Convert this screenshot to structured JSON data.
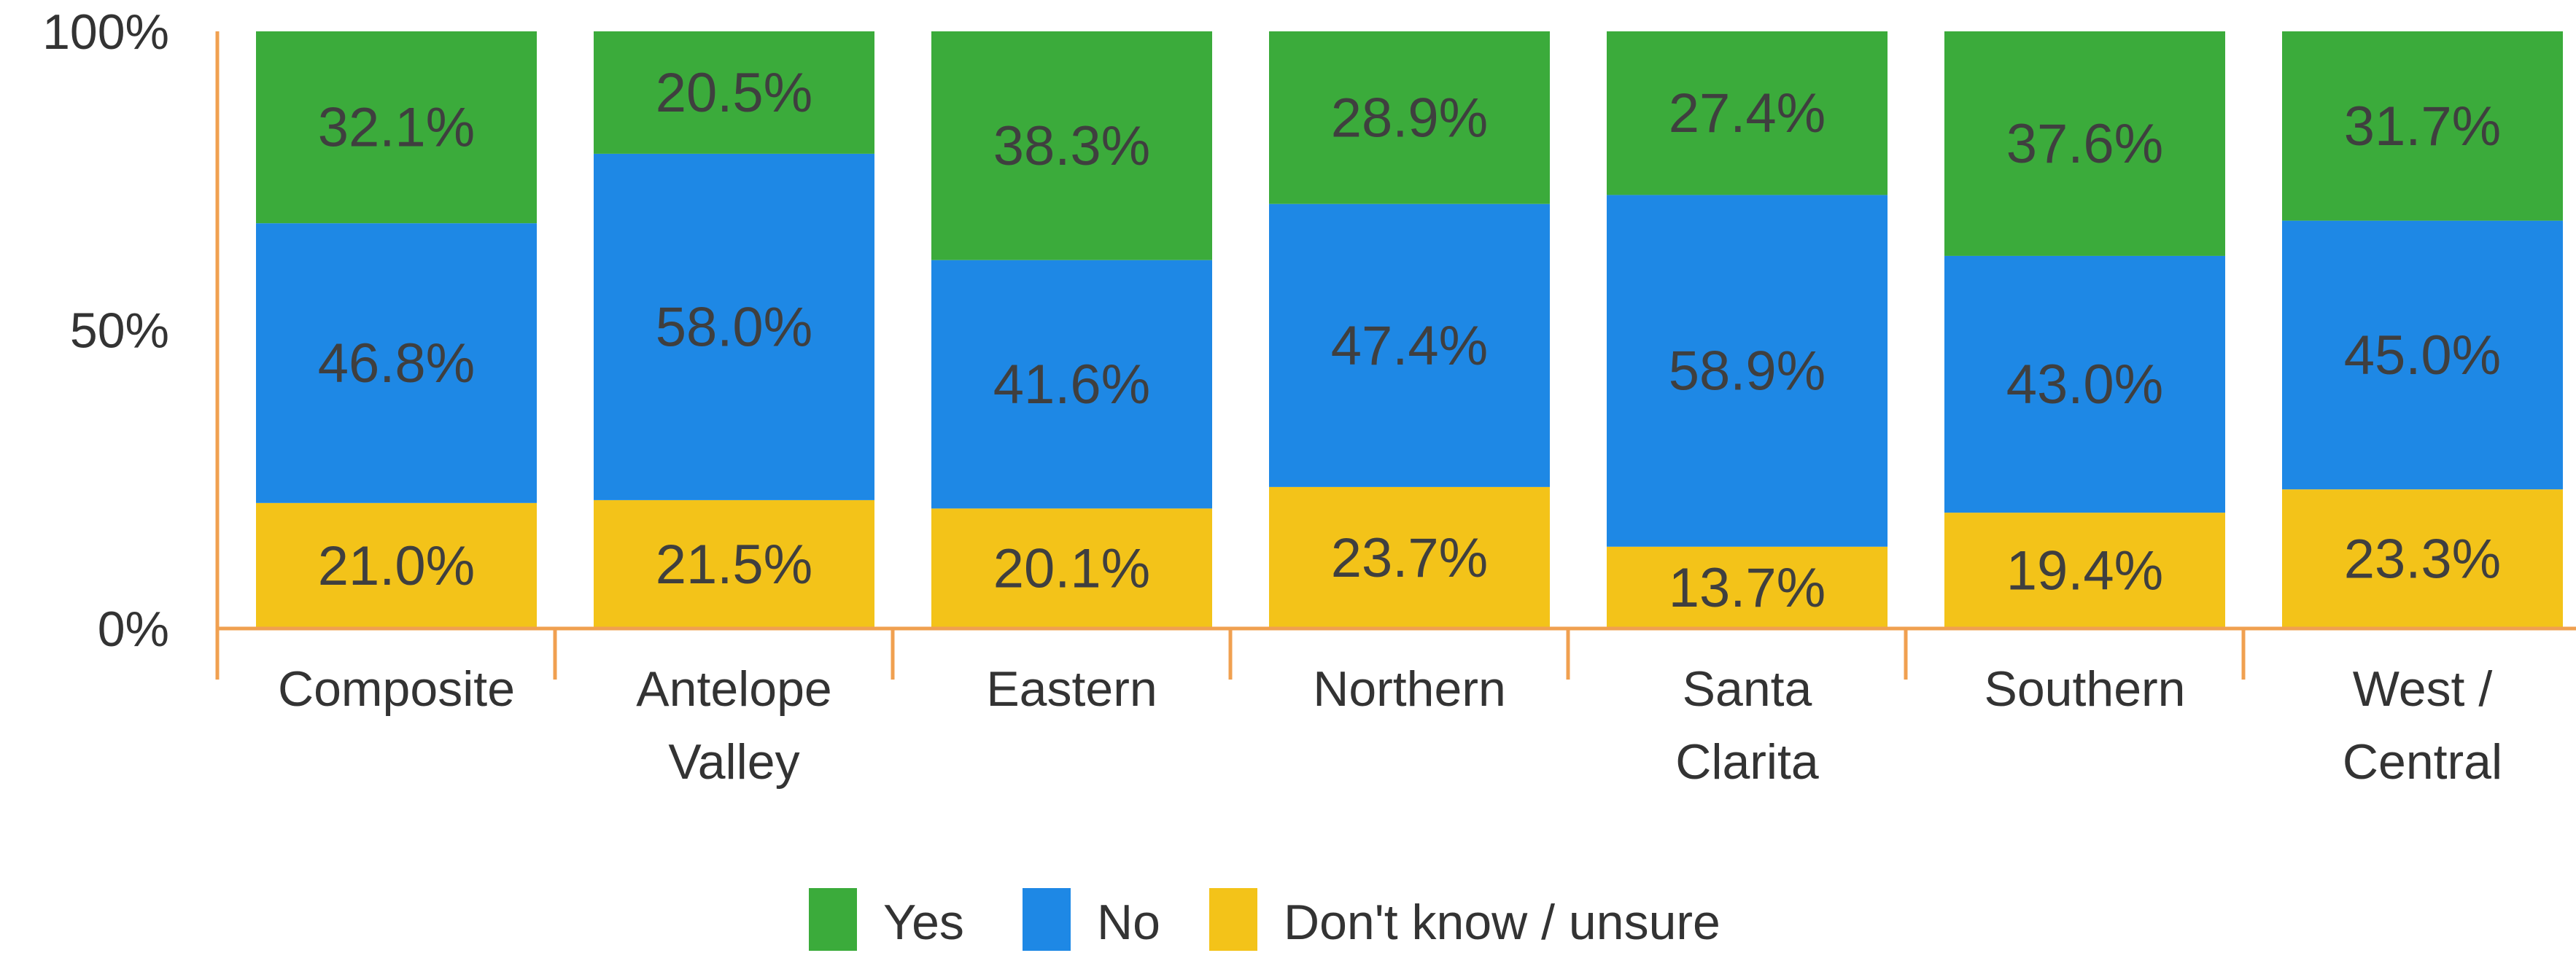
{
  "chart_data": {
    "type": "bar",
    "stacked": true,
    "normalized_percent": true,
    "categories": [
      [
        "Composite"
      ],
      [
        "Antelope",
        "Valley"
      ],
      [
        "Eastern"
      ],
      [
        "Northern"
      ],
      [
        "Santa",
        "Clarita"
      ],
      [
        "Southern"
      ],
      [
        "West /",
        "Central"
      ]
    ],
    "series": [
      {
        "name": "Don't know / unsure",
        "color": "#f3c319",
        "values": [
          21.0,
          21.5,
          20.1,
          23.7,
          13.7,
          19.4,
          23.3
        ],
        "labels": [
          "21.0%",
          "21.5%",
          "20.1%",
          "23.7%",
          "13.7%",
          "19.4%",
          "23.3%"
        ]
      },
      {
        "name": "No",
        "color": "#1e88e5",
        "values": [
          46.8,
          58.0,
          41.6,
          47.4,
          58.9,
          43.0,
          45.0
        ],
        "labels": [
          "46.8%",
          "58.0%",
          "41.6%",
          "47.4%",
          "58.9%",
          "43.0%",
          "45.0%"
        ]
      },
      {
        "name": "Yes",
        "color": "#3bab3b",
        "values": [
          32.1,
          20.5,
          38.3,
          28.9,
          27.4,
          37.6,
          31.7
        ],
        "labels": [
          "32.1%",
          "20.5%",
          "38.3%",
          "28.9%",
          "27.4%",
          "37.6%",
          "31.7%"
        ]
      }
    ],
    "legend": [
      "Yes",
      "No",
      "Don't know / unsure"
    ],
    "legend_position": "bottom",
    "yticks": [
      "0%",
      "50%",
      "100%"
    ],
    "ylim": [
      0,
      100
    ],
    "axis_color": "#f0a050",
    "title": "",
    "xlabel": "",
    "ylabel": "",
    "grid": false
  }
}
